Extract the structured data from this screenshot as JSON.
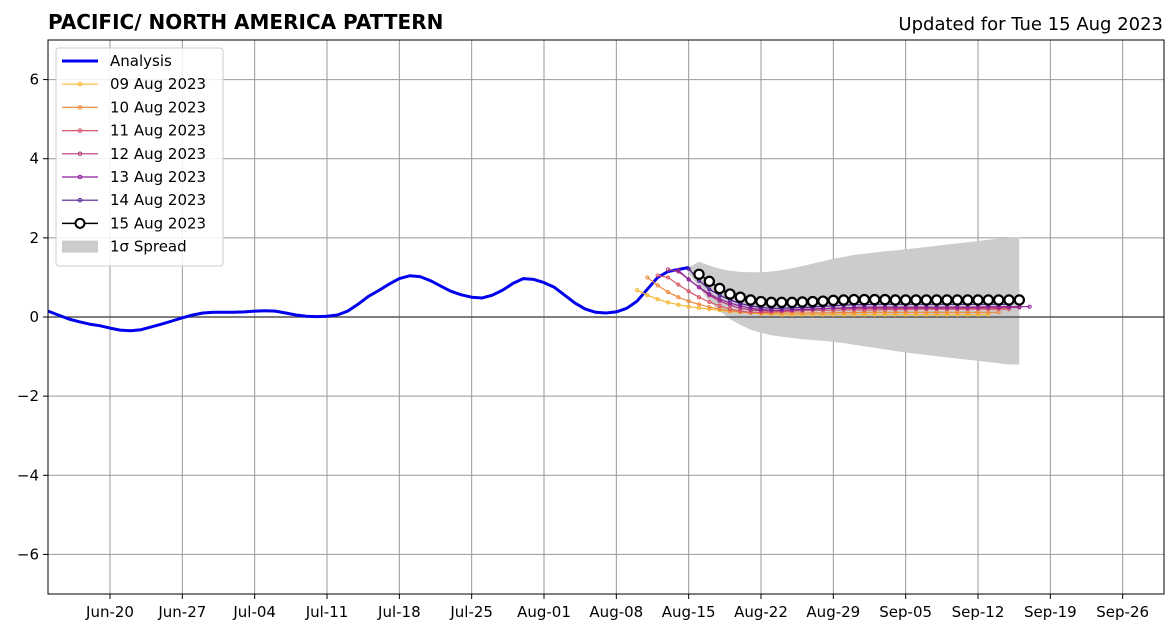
{
  "chart_data": {
    "type": "line",
    "title": "PACIFIC/ NORTH AMERICA PATTERN",
    "subtitle": "Updated for Tue 15 Aug 2023",
    "xlabel": "",
    "ylabel": "",
    "xlim": [
      "2023-06-14",
      "2023-09-30"
    ],
    "ylim": [
      -7,
      7
    ],
    "grid": true,
    "legend_position": "top-left",
    "x_ticks": [
      {
        "date": "2023-06-20",
        "label": "Jun-20"
      },
      {
        "date": "2023-06-27",
        "label": "Jun-27"
      },
      {
        "date": "2023-07-04",
        "label": "Jul-04"
      },
      {
        "date": "2023-07-11",
        "label": "Jul-11"
      },
      {
        "date": "2023-07-18",
        "label": "Jul-18"
      },
      {
        "date": "2023-07-25",
        "label": "Jul-25"
      },
      {
        "date": "2023-08-01",
        "label": "Aug-01"
      },
      {
        "date": "2023-08-08",
        "label": "Aug-08"
      },
      {
        "date": "2023-08-15",
        "label": "Aug-15"
      },
      {
        "date": "2023-08-22",
        "label": "Aug-22"
      },
      {
        "date": "2023-08-29",
        "label": "Aug-29"
      },
      {
        "date": "2023-09-05",
        "label": "Sep-05"
      },
      {
        "date": "2023-09-12",
        "label": "Sep-12"
      },
      {
        "date": "2023-09-19",
        "label": "Sep-19"
      },
      {
        "date": "2023-09-26",
        "label": "Sep-26"
      }
    ],
    "y_ticks": [
      {
        "value": 6,
        "label": "6"
      },
      {
        "value": 4,
        "label": "4"
      },
      {
        "value": 2,
        "label": "2"
      },
      {
        "value": 0,
        "label": "0"
      },
      {
        "value": -2,
        "label": "−2"
      },
      {
        "value": -4,
        "label": "−4"
      },
      {
        "value": -6,
        "label": "−6"
      }
    ],
    "analysis": {
      "name": "Analysis",
      "color": "#0000ee",
      "x": [
        "2023-06-14",
        "2023-06-15",
        "2023-06-16",
        "2023-06-17",
        "2023-06-18",
        "2023-06-19",
        "2023-06-20",
        "2023-06-21",
        "2023-06-22",
        "2023-06-23",
        "2023-06-24",
        "2023-06-25",
        "2023-06-26",
        "2023-06-27",
        "2023-06-28",
        "2023-06-29",
        "2023-06-30",
        "2023-07-01",
        "2023-07-02",
        "2023-07-03",
        "2023-07-04",
        "2023-07-05",
        "2023-07-06",
        "2023-07-07",
        "2023-07-08",
        "2023-07-09",
        "2023-07-10",
        "2023-07-11",
        "2023-07-12",
        "2023-07-13",
        "2023-07-14",
        "2023-07-15",
        "2023-07-16",
        "2023-07-17",
        "2023-07-18",
        "2023-07-19",
        "2023-07-20",
        "2023-07-21",
        "2023-07-22",
        "2023-07-23",
        "2023-07-24",
        "2023-07-25",
        "2023-07-26",
        "2023-07-27",
        "2023-07-28",
        "2023-07-29",
        "2023-07-30",
        "2023-07-31",
        "2023-08-01",
        "2023-08-02",
        "2023-08-03",
        "2023-08-04",
        "2023-08-05",
        "2023-08-06",
        "2023-08-07",
        "2023-08-08",
        "2023-08-09",
        "2023-08-10",
        "2023-08-11",
        "2023-08-12",
        "2023-08-13",
        "2023-08-14",
        "2023-08-15"
      ],
      "y": [
        0.15,
        0.05,
        -0.05,
        -0.12,
        -0.18,
        -0.22,
        -0.28,
        -0.33,
        -0.35,
        -0.32,
        -0.25,
        -0.18,
        -0.1,
        -0.02,
        0.05,
        0.1,
        0.12,
        0.12,
        0.12,
        0.13,
        0.15,
        0.16,
        0.15,
        0.1,
        0.05,
        0.02,
        0.01,
        0.02,
        0.05,
        0.15,
        0.32,
        0.52,
        0.67,
        0.83,
        0.97,
        1.04,
        1.02,
        0.92,
        0.78,
        0.65,
        0.56,
        0.5,
        0.48,
        0.55,
        0.68,
        0.85,
        0.97,
        0.95,
        0.87,
        0.75,
        0.55,
        0.35,
        0.2,
        0.12,
        0.1,
        0.13,
        0.22,
        0.4,
        0.7,
        1.0,
        1.15,
        1.2,
        1.25
      ]
    },
    "spread": {
      "name": "1σ Spread",
      "color": "#cccccc",
      "x": [
        "2023-08-15",
        "2023-08-16",
        "2023-08-17",
        "2023-08-18",
        "2023-08-19",
        "2023-08-20",
        "2023-08-21",
        "2023-08-22",
        "2023-08-23",
        "2023-08-24",
        "2023-08-25",
        "2023-08-26",
        "2023-08-27",
        "2023-08-28",
        "2023-08-29",
        "2023-08-30",
        "2023-08-31",
        "2023-09-01",
        "2023-09-02",
        "2023-09-03",
        "2023-09-04",
        "2023-09-05",
        "2023-09-06",
        "2023-09-07",
        "2023-09-08",
        "2023-09-09",
        "2023-09-10",
        "2023-09-11",
        "2023-09-12",
        "2023-09-13",
        "2023-09-14",
        "2023-09-15",
        "2023-09-16"
      ],
      "upper": [
        1.25,
        1.4,
        1.3,
        1.22,
        1.17,
        1.14,
        1.13,
        1.13,
        1.15,
        1.18,
        1.23,
        1.29,
        1.35,
        1.41,
        1.47,
        1.52,
        1.57,
        1.6,
        1.63,
        1.66,
        1.68,
        1.71,
        1.74,
        1.77,
        1.8,
        1.83,
        1.86,
        1.89,
        1.92,
        1.95,
        1.98,
        2.0,
        2.01
      ],
      "lower": [
        1.1,
        0.75,
        0.4,
        0.15,
        -0.05,
        -0.2,
        -0.32,
        -0.4,
        -0.46,
        -0.5,
        -0.53,
        -0.56,
        -0.58,
        -0.6,
        -0.63,
        -0.66,
        -0.7,
        -0.74,
        -0.78,
        -0.82,
        -0.86,
        -0.9,
        -0.93,
        -0.96,
        -0.99,
        -1.02,
        -1.05,
        -1.08,
        -1.11,
        -1.14,
        -1.17,
        -1.2,
        -1.2
      ]
    },
    "forecasts": [
      {
        "name": "09 Aug 2023",
        "color": "#f5b731",
        "start": "2023-08-10",
        "y": [
          0.68,
          0.55,
          0.45,
          0.37,
          0.31,
          0.26,
          0.23,
          0.2,
          0.17,
          0.14,
          0.12,
          0.1,
          0.08,
          0.07,
          0.06,
          0.06,
          0.06,
          0.06,
          0.06,
          0.06,
          0.06,
          0.06,
          0.06,
          0.06,
          0.06,
          0.06,
          0.06,
          0.06,
          0.06,
          0.06,
          0.06,
          0.06,
          0.06,
          0.06,
          0.06
        ]
      },
      {
        "name": "10 Aug 2023",
        "color": "#ee8a3c",
        "start": "2023-08-11",
        "y": [
          1.0,
          0.8,
          0.63,
          0.5,
          0.4,
          0.32,
          0.25,
          0.2,
          0.16,
          0.13,
          0.11,
          0.1,
          0.1,
          0.1,
          0.1,
          0.1,
          0.1,
          0.1,
          0.11,
          0.11,
          0.11,
          0.12,
          0.12,
          0.12,
          0.12,
          0.12,
          0.12,
          0.12,
          0.12,
          0.12,
          0.12,
          0.12,
          0.12,
          0.12,
          0.12
        ]
      },
      {
        "name": "11 Aug 2023",
        "color": "#d9576b",
        "start": "2023-08-12",
        "y": [
          1.05,
          1.0,
          0.82,
          0.65,
          0.5,
          0.38,
          0.28,
          0.2,
          0.15,
          0.12,
          0.12,
          0.13,
          0.14,
          0.15,
          0.16,
          0.17,
          0.17,
          0.17,
          0.18,
          0.18,
          0.18,
          0.18,
          0.19,
          0.19,
          0.19,
          0.2,
          0.2,
          0.2,
          0.2,
          0.2,
          0.2,
          0.2,
          0.2,
          0.2,
          0.2
        ]
      },
      {
        "name": "12 Aug 2023",
        "color": "#b5367a",
        "start": "2023-08-13",
        "y": [
          1.2,
          1.15,
          0.95,
          0.75,
          0.55,
          0.4,
          0.3,
          0.22,
          0.18,
          0.16,
          0.16,
          0.17,
          0.18,
          0.19,
          0.2,
          0.21,
          0.22,
          0.22,
          0.22,
          0.22,
          0.22,
          0.22,
          0.22,
          0.22,
          0.22,
          0.22,
          0.22,
          0.22,
          0.22,
          0.23,
          0.23,
          0.23,
          0.23,
          0.24,
          0.24
        ]
      },
      {
        "name": "13 Aug 2023",
        "color": "#8b1e99",
        "start": "2023-08-14",
        "y": [
          1.18,
          0.95,
          0.75,
          0.58,
          0.45,
          0.35,
          0.28,
          0.22,
          0.19,
          0.17,
          0.17,
          0.18,
          0.19,
          0.2,
          0.21,
          0.22,
          0.23,
          0.24,
          0.25,
          0.25,
          0.25,
          0.25,
          0.25,
          0.25,
          0.25,
          0.25,
          0.25,
          0.25,
          0.25,
          0.25,
          0.26,
          0.26,
          0.26,
          0.26,
          0.26
        ]
      },
      {
        "name": "14 Aug 2023",
        "color": "#4c1a8f",
        "start": "2023-08-15",
        "y": [
          1.22,
          0.92,
          0.7,
          0.55,
          0.43,
          0.34,
          0.28,
          0.24,
          0.22,
          0.22,
          0.23,
          0.24,
          0.25,
          0.27,
          0.28,
          0.3,
          0.31,
          0.31,
          0.32,
          0.32,
          0.32,
          0.32,
          0.32,
          0.32,
          0.32,
          0.32,
          0.32,
          0.32,
          0.32,
          0.32,
          0.32,
          0.32
        ]
      },
      {
        "name": "15 Aug 2023",
        "color": "#000000",
        "start": "2023-08-16",
        "circles": true,
        "y": [
          1.08,
          0.9,
          0.72,
          0.58,
          0.5,
          0.43,
          0.39,
          0.37,
          0.37,
          0.37,
          0.38,
          0.39,
          0.4,
          0.42,
          0.43,
          0.44,
          0.44,
          0.44,
          0.44,
          0.43,
          0.43,
          0.43,
          0.43,
          0.43,
          0.43,
          0.43,
          0.43,
          0.43,
          0.43,
          0.43,
          0.43,
          0.43
        ]
      }
    ]
  }
}
